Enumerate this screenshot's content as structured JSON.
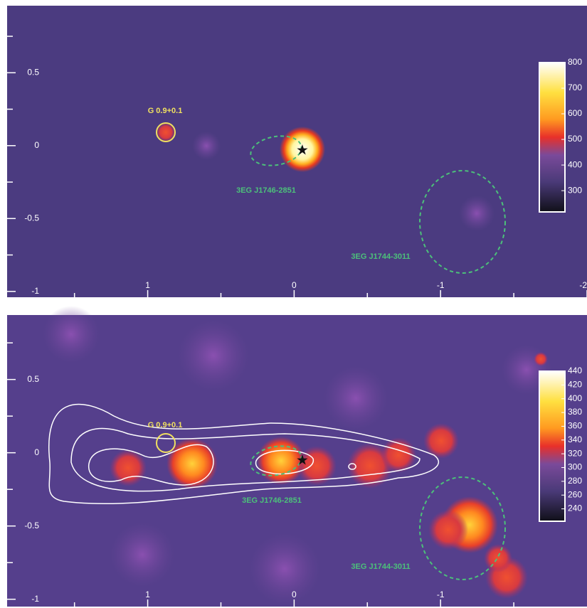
{
  "chart_data": [
    {
      "type": "heatmap",
      "xlim": [
        1.96,
        -2.0
      ],
      "xticks": [
        1,
        0,
        -1,
        -2
      ],
      "xminorticks": [
        1.5,
        0.5,
        -0.5,
        -1.5
      ],
      "ylim": [
        -1.04,
        0.96
      ],
      "yticks": [
        0.5,
        0,
        -0.5,
        -1
      ],
      "yminorticks": [
        0.75,
        0.25,
        -0.25,
        -0.75
      ],
      "colorbar_lim": [
        217,
        800
      ],
      "colorbar_ticks": [
        800,
        700,
        600,
        500,
        400,
        300
      ],
      "annotations": [
        {
          "text": "G 0.9+0.1",
          "color": "#f0e060"
        },
        {
          "text": "3EG J1746-2851",
          "color": "#4cc07a"
        },
        {
          "text": "3EG J1744-3011",
          "color": "#4cc07a"
        }
      ]
    },
    {
      "type": "heatmap",
      "xlim": [
        1.96,
        -2.0
      ],
      "xticks": [
        1,
        0,
        -1
      ],
      "xminorticks": [
        1.5,
        0.5,
        -0.5,
        -1.5
      ],
      "ylim": [
        -1.05,
        0.94
      ],
      "yticks": [
        0.5,
        0,
        -0.5,
        -1
      ],
      "yminorticks": [
        0.75,
        0.25,
        -0.25,
        -0.75
      ],
      "colorbar_lim": [
        222,
        440
      ],
      "colorbar_ticks": [
        440,
        420,
        400,
        380,
        360,
        340,
        320,
        300,
        280,
        260,
        240
      ],
      "annotations": [
        {
          "text": "G 0.9+0.1",
          "color": "#f0e060"
        },
        {
          "text": "3EG J1746-2851",
          "color": "#4cc07a"
        },
        {
          "text": "3EG J1744-3011",
          "color": "#4cc07a"
        }
      ]
    }
  ]
}
